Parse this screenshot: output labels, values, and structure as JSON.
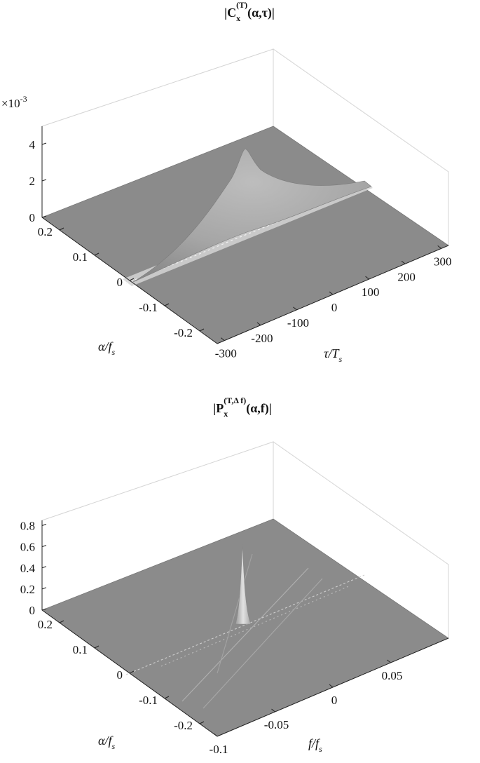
{
  "chart_data": [
    {
      "type": "surface",
      "title": {
        "pre": "|C",
        "sub": "x",
        "sup": "(T)",
        "args": "(α,τ)|"
      },
      "zscale": {
        "base": "×10",
        "exp": "-3"
      },
      "xlabel": {
        "main": "τ/T",
        "sub": "s"
      },
      "ylabel": {
        "main": "α/f",
        "sub": "s"
      },
      "xlim": [
        -320,
        320
      ],
      "ylim": [
        -0.25,
        0.25
      ],
      "zlim": [
        0,
        5
      ],
      "xticks": [
        -300,
        -200,
        -100,
        0,
        100,
        200,
        300
      ],
      "xtick_labels": [
        "-300",
        "-200",
        "-100",
        "0",
        "100",
        "200",
        "300"
      ],
      "yticks": [
        -0.2,
        -0.1,
        0,
        0.1,
        0.2
      ],
      "ytick_labels": [
        "-0.2",
        "-0.1",
        "0",
        "0.1",
        "0.2"
      ],
      "zticks": [
        0,
        2,
        4
      ],
      "ztick_labels": [
        "0",
        "2",
        "4"
      ],
      "peak": {
        "x": 0,
        "y": 0.08,
        "z": 4.3
      },
      "grid": true,
      "colormap": "gray"
    },
    {
      "type": "surface",
      "title": {
        "pre": "|P",
        "sub": "x",
        "sup": "(T,Δ f)",
        "args": "(α,f)|"
      },
      "xlabel": {
        "main": "f/f",
        "sub": "s"
      },
      "ylabel": {
        "main": "α/f",
        "sub": "s"
      },
      "xlim": [
        -0.1,
        0.1
      ],
      "ylim": [
        -0.25,
        0.25
      ],
      "zlim": [
        0,
        0.85
      ],
      "xticks": [
        -0.1,
        -0.05,
        0,
        0.05
      ],
      "xtick_labels": [
        "-0.1",
        "-0.05",
        "0",
        "0.05"
      ],
      "yticks": [
        -0.2,
        -0.1,
        0,
        0.1,
        0.2
      ],
      "ytick_labels": [
        "-0.2",
        "-0.1",
        "0",
        "0.1",
        "0.2"
      ],
      "zticks": [
        0,
        0.2,
        0.4,
        0.6,
        0.8
      ],
      "ztick_labels": [
        "0",
        "0.2",
        "0.4",
        "0.6",
        "0.8"
      ],
      "peak": {
        "x": 0,
        "y": 0.05,
        "z": 0.7
      },
      "grid": true,
      "colormap": "gray"
    }
  ]
}
